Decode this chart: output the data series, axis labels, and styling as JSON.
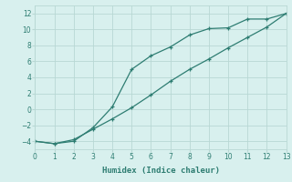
{
  "xlabel": "Humidex (Indice chaleur)",
  "line1_x": [
    0,
    1,
    2,
    3,
    4,
    5,
    6,
    7,
    8,
    9,
    10,
    11,
    12,
    13
  ],
  "line1_y": [
    -4,
    -4.3,
    -4,
    -2.3,
    0.3,
    5.0,
    6.7,
    7.8,
    9.3,
    10.1,
    10.2,
    11.3,
    11.3,
    12.0
  ],
  "line2_x": [
    0,
    1,
    2,
    3,
    4,
    5,
    6,
    7,
    8,
    9,
    10,
    11,
    12,
    13
  ],
  "line2_y": [
    -4.0,
    -4.3,
    -3.8,
    -2.5,
    -1.2,
    0.2,
    1.8,
    3.5,
    5.0,
    6.3,
    7.7,
    9.0,
    10.3,
    12.0
  ],
  "line_color": "#2e7d72",
  "bg_color": "#d8f0ee",
  "grid_color": "#b8d8d4",
  "xlim": [
    0,
    13
  ],
  "ylim": [
    -5,
    13
  ],
  "xticks": [
    0,
    1,
    2,
    3,
    4,
    5,
    6,
    7,
    8,
    9,
    10,
    11,
    12,
    13
  ],
  "yticks": [
    -4,
    -2,
    0,
    2,
    4,
    6,
    8,
    10,
    12
  ]
}
